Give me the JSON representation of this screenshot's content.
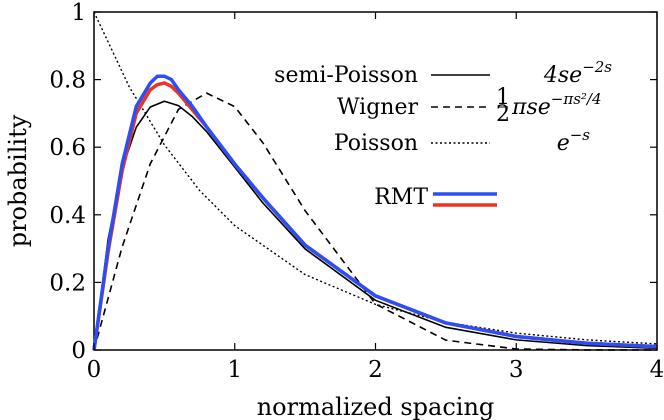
{
  "chart_data": {
    "type": "line",
    "xlabel": "normalized spacing",
    "ylabel": "probability",
    "xlim": [
      0,
      4
    ],
    "ylim": [
      0,
      1
    ],
    "x_ticks": [
      "0",
      "1",
      "2",
      "3",
      "4"
    ],
    "y_ticks": [
      "0",
      "0.2",
      "0.4",
      "0.6",
      "0.8",
      "1"
    ],
    "grid": false,
    "legend_position": "top-right",
    "series": [
      {
        "name": "semi-Poisson",
        "formula": "4se^{-2s}",
        "color": "#000000",
        "style": "solid",
        "x": [
          0,
          0.1,
          0.2,
          0.3,
          0.4,
          0.5,
          0.6,
          0.7,
          0.8,
          1.0,
          1.2,
          1.5,
          2.0,
          2.5,
          3.0,
          3.5,
          4.0
        ],
        "y": [
          0,
          0.327,
          0.536,
          0.659,
          0.719,
          0.736,
          0.723,
          0.69,
          0.646,
          0.541,
          0.435,
          0.299,
          0.147,
          0.067,
          0.03,
          0.013,
          0.005
        ]
      },
      {
        "name": "Wigner",
        "formula": "½πse^{-πs²/4}",
        "color": "#000000",
        "style": "dashed",
        "x": [
          0,
          0.2,
          0.4,
          0.6,
          0.8,
          1.0,
          1.2,
          1.5,
          2.0,
          2.5,
          3.0,
          3.5,
          4.0
        ],
        "y": [
          0,
          0.305,
          0.551,
          0.712,
          0.76,
          0.72,
          0.613,
          0.412,
          0.136,
          0.029,
          0.003,
          0.0002,
          0.0
        ]
      },
      {
        "name": "Poisson",
        "formula": "e^{-s}",
        "color": "#000000",
        "style": "dotted",
        "x": [
          0,
          0.25,
          0.5,
          0.75,
          1.0,
          1.5,
          2.0,
          2.5,
          3.0,
          3.5,
          4.0
        ],
        "y": [
          1.0,
          0.779,
          0.607,
          0.472,
          0.368,
          0.223,
          0.135,
          0.082,
          0.05,
          0.03,
          0.018
        ]
      },
      {
        "name": "RMT",
        "color": "#2b4ff5",
        "style": "solid",
        "x": [
          0,
          0.1,
          0.2,
          0.3,
          0.4,
          0.45,
          0.5,
          0.55,
          0.6,
          0.7,
          0.8,
          1.0,
          1.2,
          1.5,
          2.0,
          2.5,
          3.0,
          3.5,
          4.0
        ],
        "y": [
          0,
          0.3,
          0.55,
          0.72,
          0.79,
          0.81,
          0.81,
          0.8,
          0.77,
          0.72,
          0.66,
          0.55,
          0.45,
          0.31,
          0.16,
          0.08,
          0.04,
          0.02,
          0.01
        ]
      },
      {
        "name": "RMT",
        "color": "#ee3322",
        "style": "solid",
        "x": [
          0,
          0.1,
          0.2,
          0.3,
          0.4,
          0.45,
          0.5,
          0.55,
          0.6,
          0.7,
          0.8,
          1.0,
          1.2,
          1.5,
          2.0,
          2.5,
          3.0,
          3.5,
          4.0
        ],
        "y": [
          0,
          0.29,
          0.53,
          0.7,
          0.77,
          0.785,
          0.79,
          0.78,
          0.76,
          0.71,
          0.66,
          0.55,
          0.45,
          0.31,
          0.16,
          0.08,
          0.04,
          0.02,
          0.01
        ]
      }
    ]
  }
}
